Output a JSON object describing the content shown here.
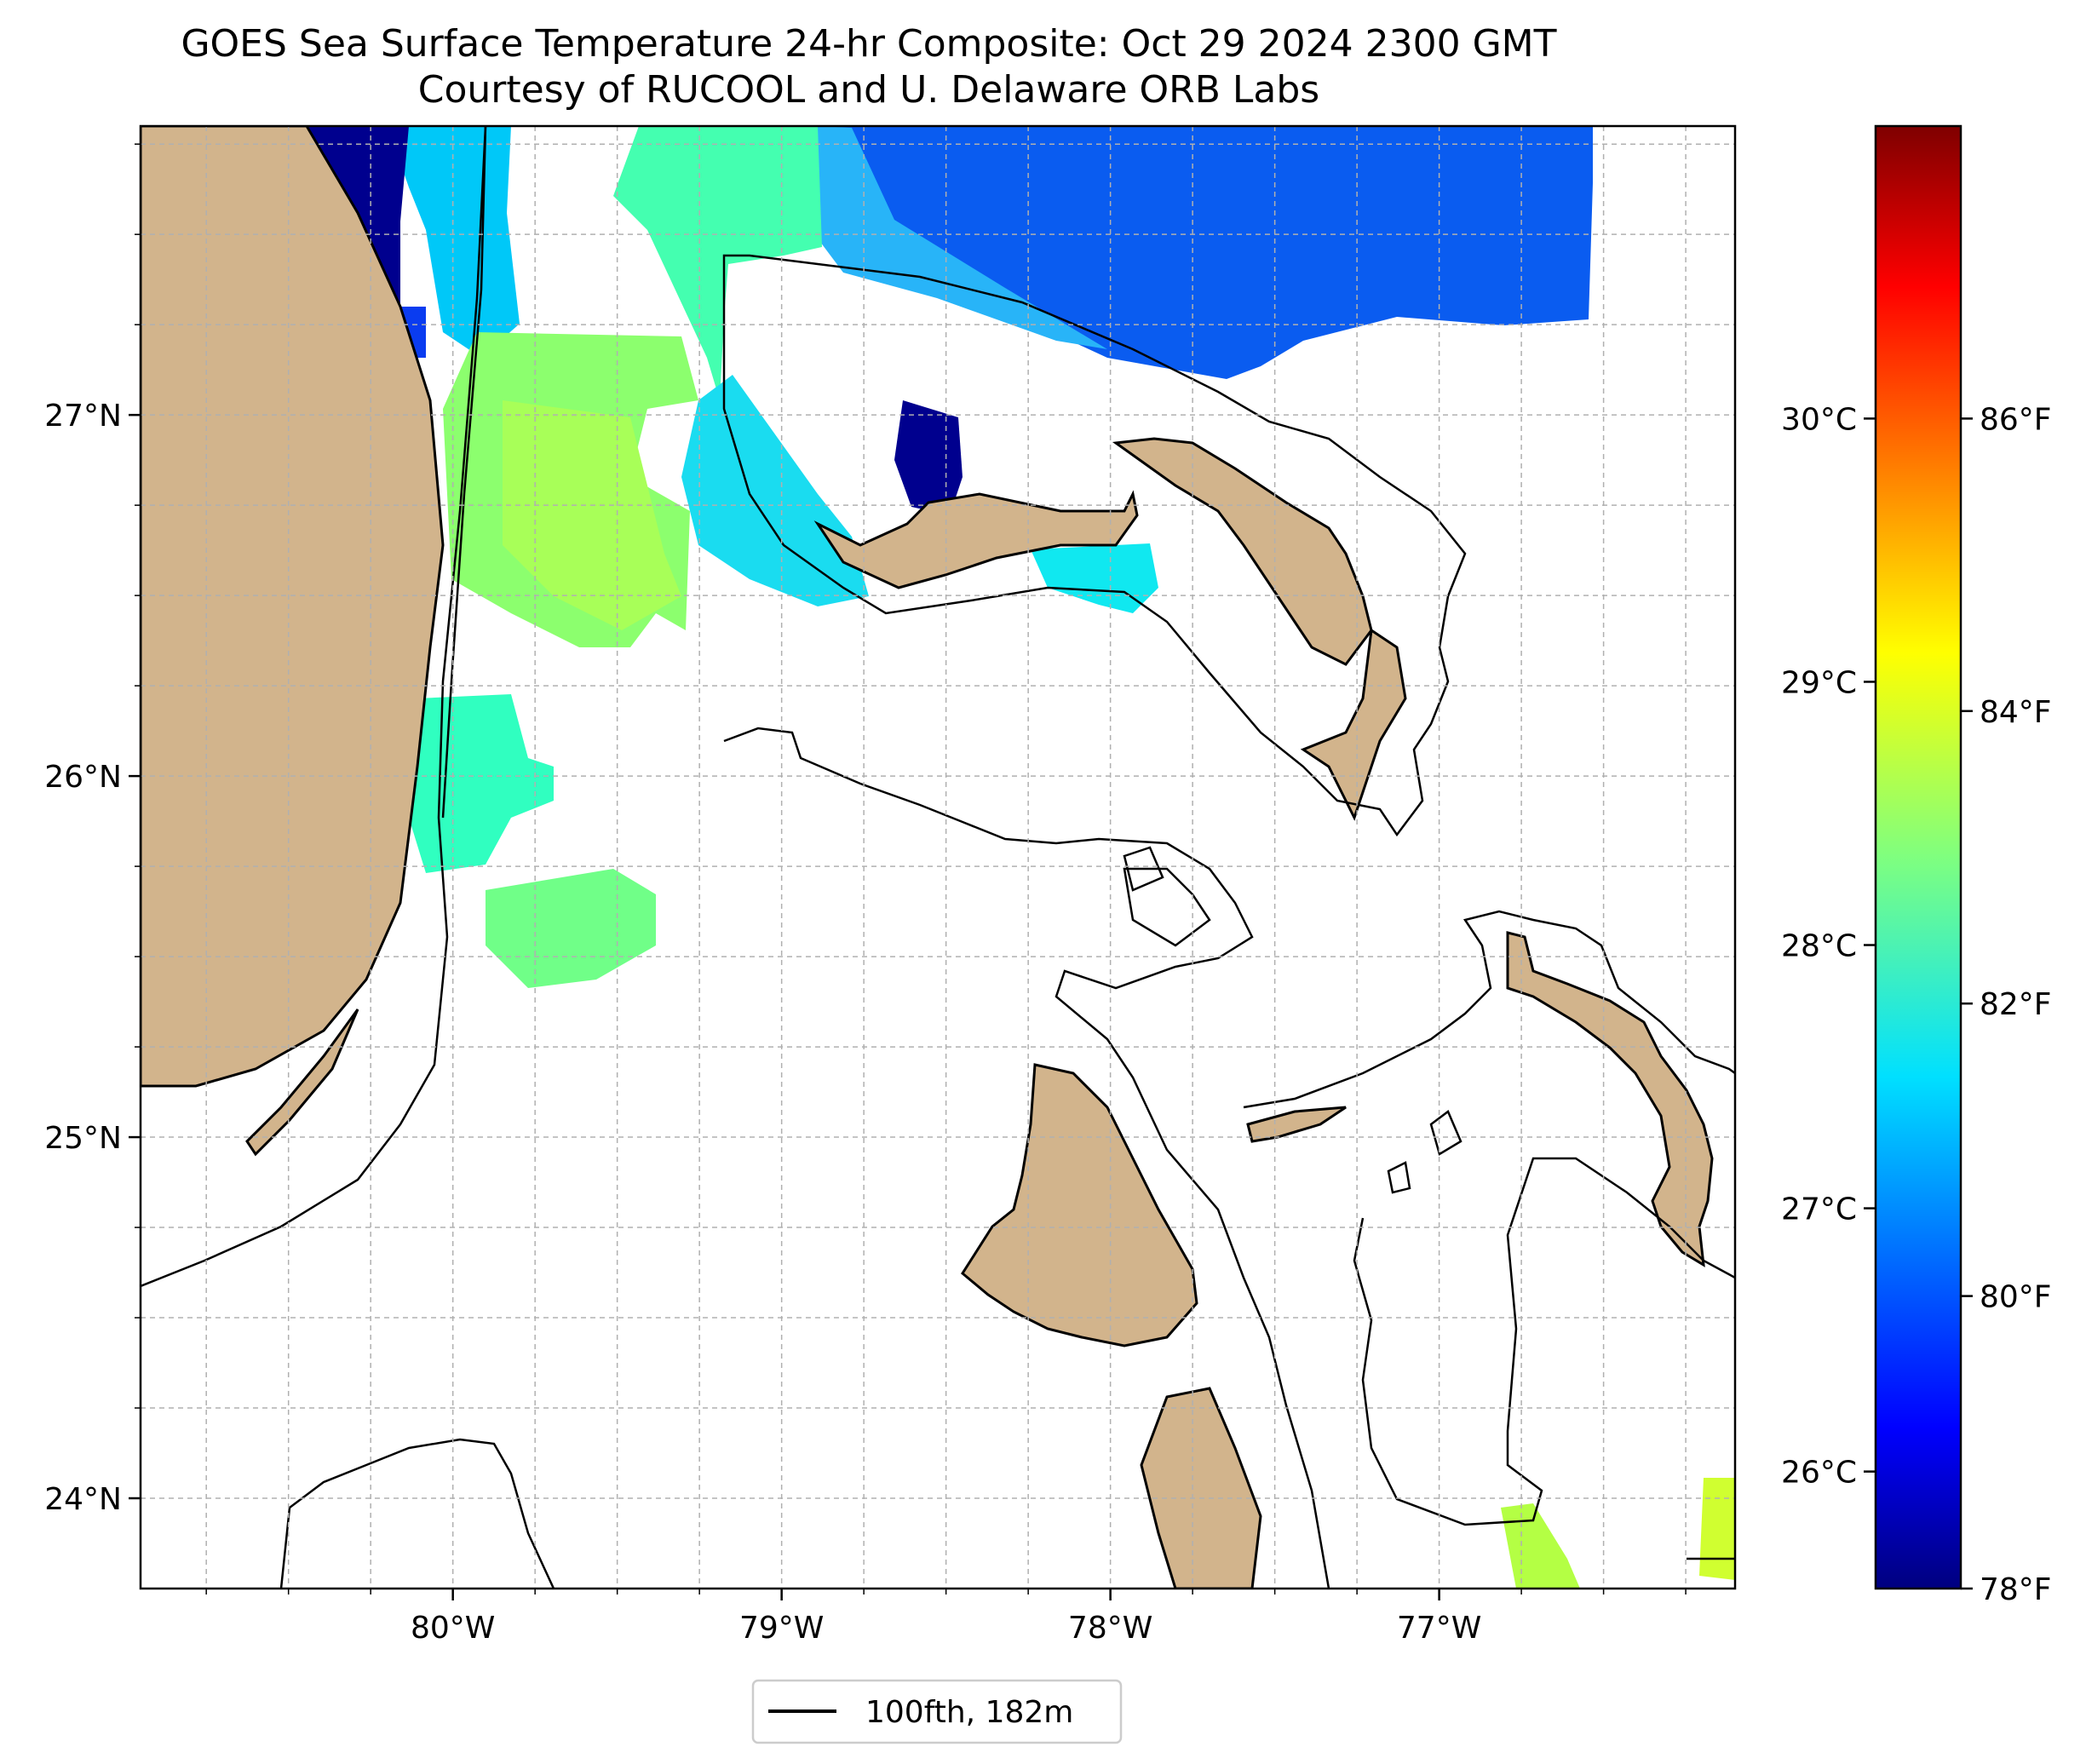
{
  "title": {
    "line1": "GOES Sea Surface Temperature 24-hr Composite: Oct 29 2024 2300 GMT",
    "line2": "Courtesy of RUCOOL and U. Delaware ORB Labs"
  },
  "map": {
    "lon_ticks": [
      {
        "lon": -80,
        "label": "80°W"
      },
      {
        "lon": -79,
        "label": "79°W"
      },
      {
        "lon": -78,
        "label": "78°W"
      },
      {
        "lon": -77,
        "label": "77°W"
      }
    ],
    "lat_ticks": [
      {
        "lat": 27,
        "label": "27°N"
      },
      {
        "lat": 26,
        "label": "26°N"
      },
      {
        "lat": 25,
        "label": "25°N"
      },
      {
        "lat": 24,
        "label": "24°N"
      }
    ],
    "lon_range": [
      -80.95,
      -76.1
    ],
    "lat_range": [
      23.75,
      27.8
    ],
    "land_color": "#d2b48c",
    "grid": "dashed gray"
  },
  "colorbar": {
    "colormap": "jet",
    "celsius_ticks": [
      {
        "value": 26,
        "label": "26°C"
      },
      {
        "value": 27,
        "label": "27°C"
      },
      {
        "value": 28,
        "label": "28°C"
      },
      {
        "value": 29,
        "label": "29°C"
      },
      {
        "value": 30,
        "label": "30°C"
      }
    ],
    "fahrenheit_ticks": [
      {
        "value": 78,
        "label": "78°F"
      },
      {
        "value": 80,
        "label": "80°F"
      },
      {
        "value": 82,
        "label": "82°F"
      },
      {
        "value": 84,
        "label": "84°F"
      },
      {
        "value": 86,
        "label": "86°F"
      }
    ],
    "range_f": [
      78,
      88
    ]
  },
  "legend": {
    "label": "100fth, 182m"
  }
}
